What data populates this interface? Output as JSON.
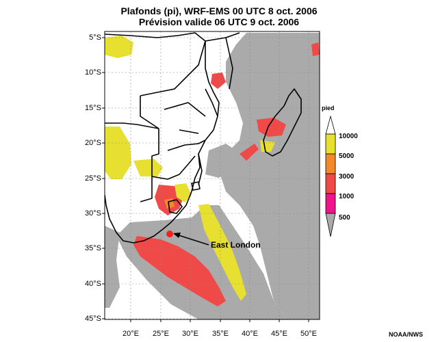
{
  "title": {
    "line1": "Plafonds (pi), WRF-EMS 00 UTC 8 oct. 2006",
    "line2": "Prévision valide 06 UTC 9 oct. 2006"
  },
  "axes": {
    "lat_labels": [
      "5°S",
      "10°S",
      "15°S",
      "20°S",
      "25°S",
      "30°S",
      "35°S",
      "40°S",
      "45°S"
    ],
    "lon_labels": [
      "20°E",
      "25°E",
      "30°E",
      "35°E",
      "40°E",
      "45°E",
      "50°E"
    ]
  },
  "annotation": {
    "label": "East London",
    "marker_color": "#ff1f1f"
  },
  "legend": {
    "unit": "pied",
    "labels": [
      "10000",
      "5000",
      "3000",
      "1000",
      "500"
    ],
    "colors": {
      "above": "#ffffff",
      "c10000": "#e8e030",
      "c5000": "#f08a2a",
      "c3000": "#f04a48",
      "c1000": "#f0148c",
      "below": "#aaaaaa"
    }
  },
  "credit": "NOAA/NWS"
}
